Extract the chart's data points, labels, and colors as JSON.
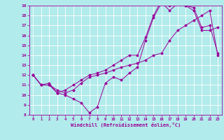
{
  "xlabel": "Windchill (Refroidissement éolien,°C)",
  "bg_color": "#b2ebeb",
  "line_color": "#990099",
  "grid_color": "#ffffff",
  "xlim": [
    -0.5,
    23.5
  ],
  "ylim": [
    8,
    19
  ],
  "xticks": [
    0,
    1,
    2,
    3,
    4,
    5,
    6,
    7,
    8,
    9,
    10,
    11,
    12,
    13,
    14,
    15,
    16,
    17,
    18,
    19,
    20,
    21,
    22,
    23
  ],
  "yticks": [
    8,
    9,
    10,
    11,
    12,
    13,
    14,
    15,
    16,
    17,
    18,
    19
  ],
  "line1_x": [
    0,
    1,
    2,
    3,
    4,
    5,
    6,
    7,
    8,
    9,
    10,
    11,
    12,
    13,
    14,
    15,
    16,
    17,
    18,
    19,
    20,
    21,
    22,
    23
  ],
  "line1_y": [
    12.0,
    11.0,
    11.0,
    10.2,
    10.0,
    9.6,
    9.2,
    8.2,
    8.8,
    11.2,
    11.8,
    11.5,
    12.2,
    12.8,
    15.5,
    17.8,
    19.3,
    18.5,
    19.2,
    19.0,
    18.5,
    16.5,
    16.5,
    16.8
  ],
  "line2_x": [
    0,
    1,
    2,
    3,
    4,
    5,
    6,
    7,
    8,
    9,
    10,
    11,
    12,
    13,
    14,
    15,
    16,
    17,
    18,
    19,
    20,
    21,
    22,
    23
  ],
  "line2_y": [
    12.0,
    11.0,
    11.0,
    10.5,
    10.2,
    10.5,
    11.2,
    11.8,
    12.0,
    12.2,
    12.5,
    12.8,
    13.0,
    13.2,
    13.5,
    14.0,
    14.2,
    15.5,
    16.5,
    17.0,
    17.5,
    18.0,
    18.5,
    14.0
  ],
  "line3_x": [
    0,
    1,
    2,
    3,
    4,
    5,
    6,
    7,
    8,
    9,
    10,
    11,
    12,
    13,
    14,
    15,
    16,
    17,
    18,
    19,
    20,
    21,
    22,
    23
  ],
  "line3_y": [
    12.0,
    11.0,
    11.2,
    10.2,
    10.5,
    11.0,
    11.5,
    12.0,
    12.2,
    12.5,
    13.0,
    13.5,
    14.0,
    14.0,
    15.8,
    18.0,
    19.5,
    19.0,
    19.2,
    19.0,
    18.8,
    16.8,
    17.0,
    14.2
  ]
}
